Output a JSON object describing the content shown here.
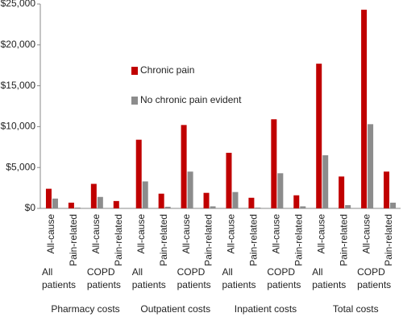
{
  "chart_data": {
    "type": "bar",
    "categories": [
      "All-cause",
      "Pain-related",
      "All-cause",
      "Pain-related",
      "All-cause",
      "Pain-related",
      "All-cause",
      "Pain-related",
      "All-cause",
      "Pain-related",
      "All-cause",
      "Pain-related",
      "All-cause",
      "Pain-related",
      "All-cause",
      "Pain-related"
    ],
    "subgroups": [
      "All patients",
      "COPD patients",
      "All patients",
      "COPD patients",
      "All patients",
      "COPD patients",
      "All patients",
      "COPD patients"
    ],
    "groups": [
      "Pharmacy costs",
      "Outpatient costs",
      "Inpatient costs",
      "Total costs"
    ],
    "series": [
      {
        "name": "Chronic pain",
        "color": "#c00000",
        "values": [
          2400,
          700,
          3000,
          900,
          8400,
          1800,
          10200,
          1900,
          6800,
          1300,
          10900,
          1600,
          17700,
          3900,
          24300,
          4500
        ]
      },
      {
        "name": "No chronic pain evident",
        "color": "#8c8c8c",
        "values": [
          1200,
          100,
          1400,
          50,
          3300,
          200,
          4500,
          250,
          2000,
          100,
          4300,
          250,
          6500,
          400,
          10300,
          700
        ]
      }
    ],
    "ylim": [
      0,
      25000
    ],
    "yticks": [
      {
        "value": 0,
        "label": "$0"
      },
      {
        "value": 5000,
        "label": "$5,000"
      },
      {
        "value": 10000,
        "label": "$10,000"
      },
      {
        "value": 15000,
        "label": "$15,000"
      },
      {
        "value": 20000,
        "label": "$20,000"
      },
      {
        "value": 25000,
        "label": "$25,000"
      }
    ],
    "grid": false
  }
}
